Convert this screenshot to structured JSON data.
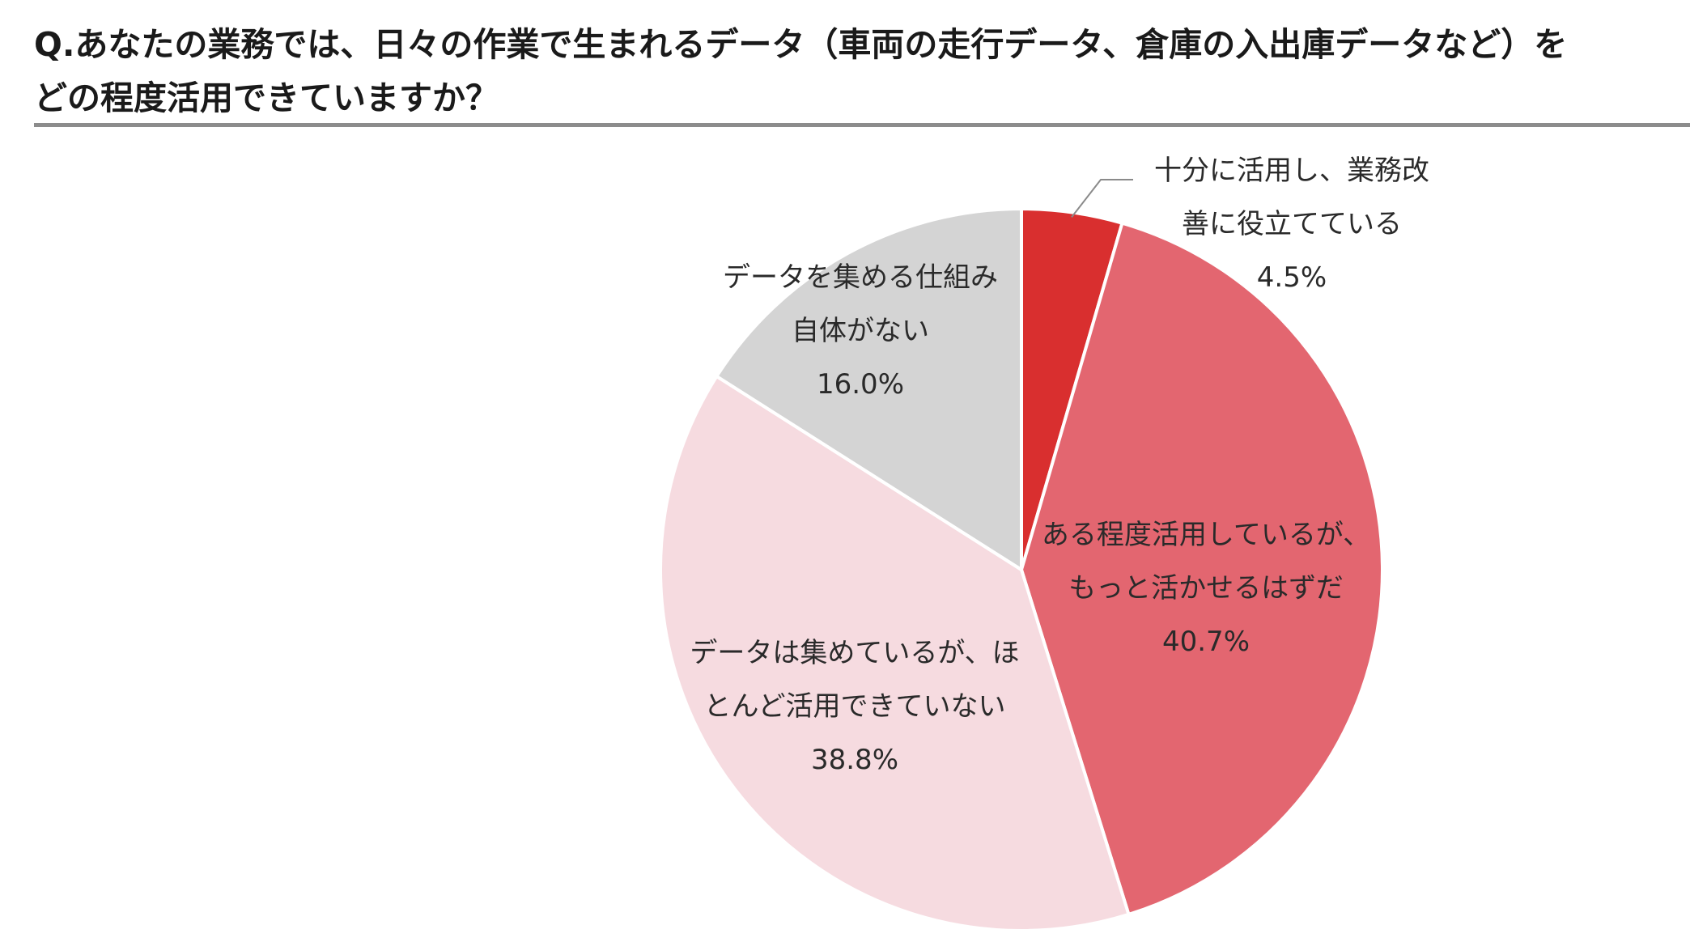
{
  "question": {
    "line1": "Q.あなたの業務では、日々の作業で生まれるデータ（車両の走行データ、倉庫の入出庫データなど）を",
    "line2": "どの程度活用できていますか？"
  },
  "chart_data": {
    "type": "pie",
    "start_angle_deg": 0,
    "direction": "clockwise",
    "legend": "none",
    "slices": [
      {
        "label_lines": [
          "十分に活用し、業務改",
          "善に役立てている"
        ],
        "value": 4.5,
        "display": "4.5%",
        "color": "#d92f2f"
      },
      {
        "label_lines": [
          "ある程度活用しているが、",
          "もっと活かせるはずだ"
        ],
        "value": 40.7,
        "display": "40.7%",
        "color": "#e36670"
      },
      {
        "label_lines": [
          "データは集めているが、ほ",
          "とんど活用できていない"
        ],
        "value": 38.8,
        "display": "38.8%",
        "color": "#f6dbe0"
      },
      {
        "label_lines": [
          "データを集める仕組み",
          "自体がない"
        ],
        "value": 16.0,
        "display": "16.0%",
        "color": "#d4d4d4"
      }
    ]
  }
}
